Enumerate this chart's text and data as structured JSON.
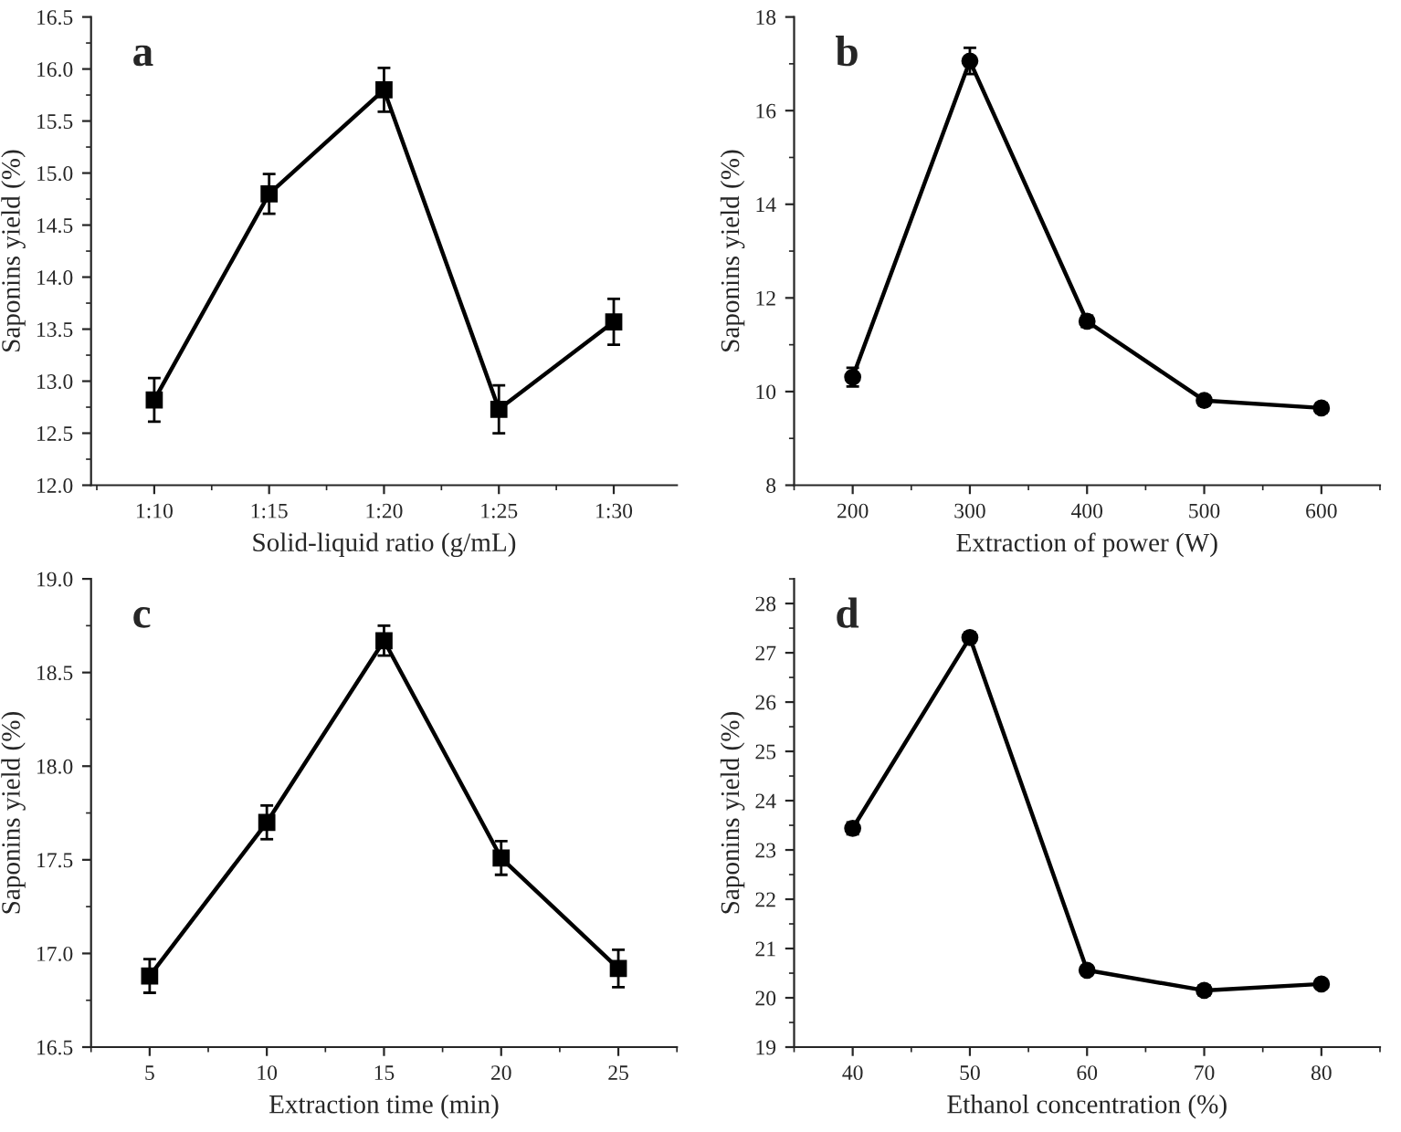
{
  "chart_data": [
    {
      "type": "line",
      "annotations": [
        "a"
      ],
      "xlabel": "Solid-liquid ratio (g/mL)",
      "ylabel": "Saponins yield (%)",
      "categories": [
        "1:10",
        "1:15",
        "1:20",
        "1:25",
        "1:30"
      ],
      "series": [
        {
          "color": "#000000",
          "values": [
            12.82,
            14.8,
            15.8,
            12.73,
            13.57
          ],
          "errors": [
            0.21,
            0.19,
            0.21,
            0.23,
            0.22
          ]
        }
      ],
      "ylim": [
        12.0,
        16.5
      ],
      "yticks": [
        {
          "value": 12,
          "label": "12.0"
        },
        {
          "value": 12.5,
          "label": "12.5"
        },
        {
          "value": 13,
          "label": "13.0"
        },
        {
          "value": 13.5,
          "label": "13.5"
        },
        {
          "value": 14,
          "label": "14.0"
        },
        {
          "value": 14.5,
          "label": "14.5"
        },
        {
          "value": 15,
          "label": "15.0"
        },
        {
          "value": 15.5,
          "label": "15.5"
        },
        {
          "value": 16,
          "label": "16.0"
        },
        {
          "value": 16.5,
          "label": "16.5"
        }
      ],
      "marker": "square",
      "line_style": "solid",
      "grid": false,
      "legend": false
    },
    {
      "type": "line",
      "annotations": [
        "b"
      ],
      "xlabel": "Extraction of power (W)",
      "ylabel": "Saponins yield (%)",
      "x": [
        200,
        300,
        400,
        500,
        600
      ],
      "series": [
        {
          "color": "#000000",
          "values": [
            10.31,
            17.06,
            11.5,
            9.81,
            9.65
          ],
          "errors": [
            0.2,
            0.28,
            0.12,
            0.1,
            0.1
          ]
        }
      ],
      "xlim": [
        150,
        650
      ],
      "xticks": [
        200,
        300,
        400,
        500,
        600
      ],
      "ylim": [
        8,
        18
      ],
      "yticks": [
        8,
        10,
        12,
        14,
        16,
        18
      ],
      "marker": "circle",
      "line_style": "solid",
      "grid": false,
      "legend": false
    },
    {
      "type": "line",
      "annotations": [
        "c"
      ],
      "xlabel": "Extraction time (min)",
      "ylabel": "Saponins yield (%)",
      "x": [
        5,
        10,
        15,
        20,
        25
      ],
      "series": [
        {
          "color": "#000000",
          "values": [
            16.88,
            17.7,
            18.67,
            17.51,
            16.92
          ],
          "errors": [
            0.09,
            0.09,
            0.08,
            0.09,
            0.1
          ]
        }
      ],
      "xlim": [
        2.5,
        27.5
      ],
      "xticks": [
        5,
        10,
        15,
        20,
        25
      ],
      "ylim": [
        16.5,
        19.0
      ],
      "yticks": [
        {
          "value": 16.5,
          "label": "16.5"
        },
        {
          "value": 17,
          "label": "17.0"
        },
        {
          "value": 17.5,
          "label": "17.5"
        },
        {
          "value": 18,
          "label": "18.0"
        },
        {
          "value": 18.5,
          "label": "18.5"
        },
        {
          "value": 19,
          "label": "19.0"
        }
      ],
      "marker": "square",
      "line_style": "solid",
      "grid": false,
      "legend": false
    },
    {
      "type": "line",
      "annotations": [
        "d"
      ],
      "xlabel": "Ethanol concentration (%)",
      "ylabel": "Saponins yield (%)",
      "x": [
        40,
        50,
        60,
        70,
        80
      ],
      "series": [
        {
          "color": "#000000",
          "values": [
            23.44,
            27.31,
            20.56,
            20.15,
            20.28
          ],
          "errors": [
            0.12,
            0.1,
            0.08,
            0.1,
            0.08
          ]
        }
      ],
      "xlim": [
        35,
        85
      ],
      "xticks": [
        40,
        50,
        60,
        70,
        80
      ],
      "ylim": [
        19,
        28.5
      ],
      "yticks": [
        19,
        20,
        21,
        22,
        23,
        24,
        25,
        26,
        27,
        28
      ],
      "marker": "circle",
      "line_style": "solid",
      "grid": false,
      "legend": false
    }
  ]
}
